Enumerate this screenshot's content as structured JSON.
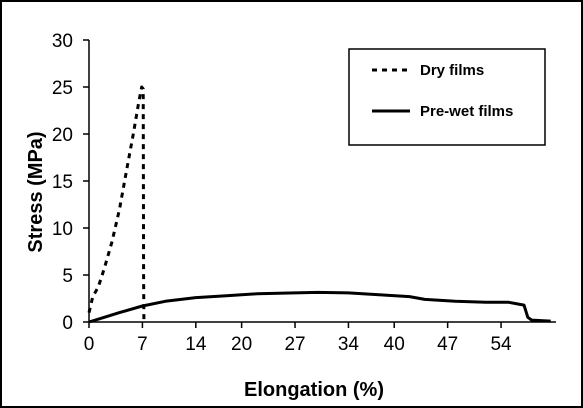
{
  "chart_data": {
    "type": "line",
    "title": "",
    "xlabel": "Elongation (%)",
    "ylabel": "Stress (MPa)",
    "xlim": [
      0,
      61.2
    ],
    "ylim": [
      0,
      30
    ],
    "x_ticks": [
      0,
      7,
      14,
      20,
      27,
      34,
      40,
      47,
      54
    ],
    "x_tick_labels": [
      "0",
      "7",
      "14",
      "20",
      "27",
      "34",
      "40",
      "47",
      "54"
    ],
    "y_ticks": [
      0,
      5,
      10,
      15,
      20,
      25,
      30
    ],
    "y_tick_labels": [
      "0",
      "5",
      "10",
      "15",
      "20",
      "25",
      "30"
    ],
    "grid": false,
    "legend_position": "top-right",
    "series": [
      {
        "name": "Dry films",
        "style": "dashed",
        "color": "#000000",
        "x": [
          0.0,
          0.5,
          1.2,
          2.0,
          3.0,
          4.0,
          5.0,
          5.8,
          6.5,
          6.9,
          7.1,
          7.15,
          7.2
        ],
        "y": [
          1.0,
          2.7,
          3.7,
          5.7,
          8.5,
          12.0,
          16.5,
          20.0,
          23.3,
          25.0,
          24.8,
          5.0,
          0.0
        ]
      },
      {
        "name": "Pre-wet films",
        "style": "solid",
        "color": "#000000",
        "x": [
          0,
          2,
          4,
          7,
          10,
          14,
          18,
          22,
          27,
          30,
          34,
          38,
          42,
          44,
          48,
          52,
          55,
          57,
          57.5,
          58,
          60.5
        ],
        "y": [
          0,
          0.5,
          1.0,
          1.7,
          2.2,
          2.6,
          2.8,
          3.0,
          3.1,
          3.15,
          3.1,
          2.9,
          2.7,
          2.4,
          2.2,
          2.1,
          2.1,
          1.8,
          0.5,
          0.2,
          0.1
        ]
      }
    ]
  }
}
